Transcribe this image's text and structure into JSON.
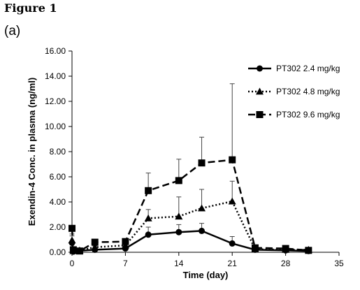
{
  "figure_title": "Figure 1",
  "panel_label": "(a)",
  "chart_data": {
    "type": "line",
    "xlabel": "Time (day)",
    "ylabel": "Exendin-4 Conc. in plasma (ng/ml)",
    "xlim": [
      0,
      35
    ],
    "ylim": [
      0,
      16
    ],
    "xticks": [
      0,
      7,
      14,
      21,
      28,
      35
    ],
    "xtick_labels": [
      "0",
      "7",
      "14",
      "21",
      "28",
      "35"
    ],
    "yticks": [
      0,
      2,
      4,
      6,
      8,
      10,
      12,
      14,
      16
    ],
    "ytick_labels": [
      "0.00",
      "2.00",
      "4.00",
      "6.00",
      "8.00",
      "10.00",
      "12.00",
      "14.00",
      "16.00"
    ],
    "grid": false,
    "legend_position": "top-right",
    "series": [
      {
        "name": "PT302 2.4 mg/kg",
        "marker": "circle",
        "line_style": "solid",
        "color": "#000000",
        "x": [
          0,
          0.17,
          1,
          3,
          7,
          10,
          14,
          17,
          21,
          24,
          28,
          31
        ],
        "y": [
          0.75,
          0.05,
          0.12,
          0.2,
          0.3,
          1.4,
          1.6,
          1.7,
          0.7,
          0.2,
          0.15,
          0.1
        ],
        "error": [
          0.55,
          0,
          0.1,
          0.1,
          0.1,
          0.6,
          0.6,
          0.6,
          0.55,
          0.1,
          0.1,
          0.05
        ]
      },
      {
        "name": "PT302 4.8 mg/kg",
        "marker": "triangle",
        "line_style": "dotted",
        "color": "#000000",
        "x": [
          0,
          0.17,
          1,
          3,
          7,
          10,
          14,
          17,
          21,
          24,
          28,
          31
        ],
        "y": [
          0.95,
          0.1,
          0.15,
          0.4,
          0.55,
          2.7,
          2.85,
          3.5,
          4.05,
          0.25,
          0.2,
          0.2
        ],
        "error": [
          0.5,
          0,
          0.1,
          0.1,
          0.15,
          0.7,
          1.55,
          1.5,
          1.6,
          0.1,
          0.1,
          0.1
        ]
      },
      {
        "name": "PT302 9.6 mg/kg",
        "marker": "square",
        "line_style": "dashed",
        "color": "#000000",
        "x": [
          0,
          0.17,
          1,
          3,
          7,
          10,
          14,
          17,
          21,
          24,
          28,
          31
        ],
        "y": [
          1.9,
          0.2,
          0.1,
          0.8,
          0.85,
          4.9,
          5.7,
          7.1,
          7.35,
          0.35,
          0.3,
          0.15
        ],
        "error": [
          0,
          0,
          0.05,
          0.1,
          0.1,
          1.4,
          1.7,
          2.05,
          6.05,
          0.1,
          0.1,
          0.05
        ]
      }
    ]
  }
}
